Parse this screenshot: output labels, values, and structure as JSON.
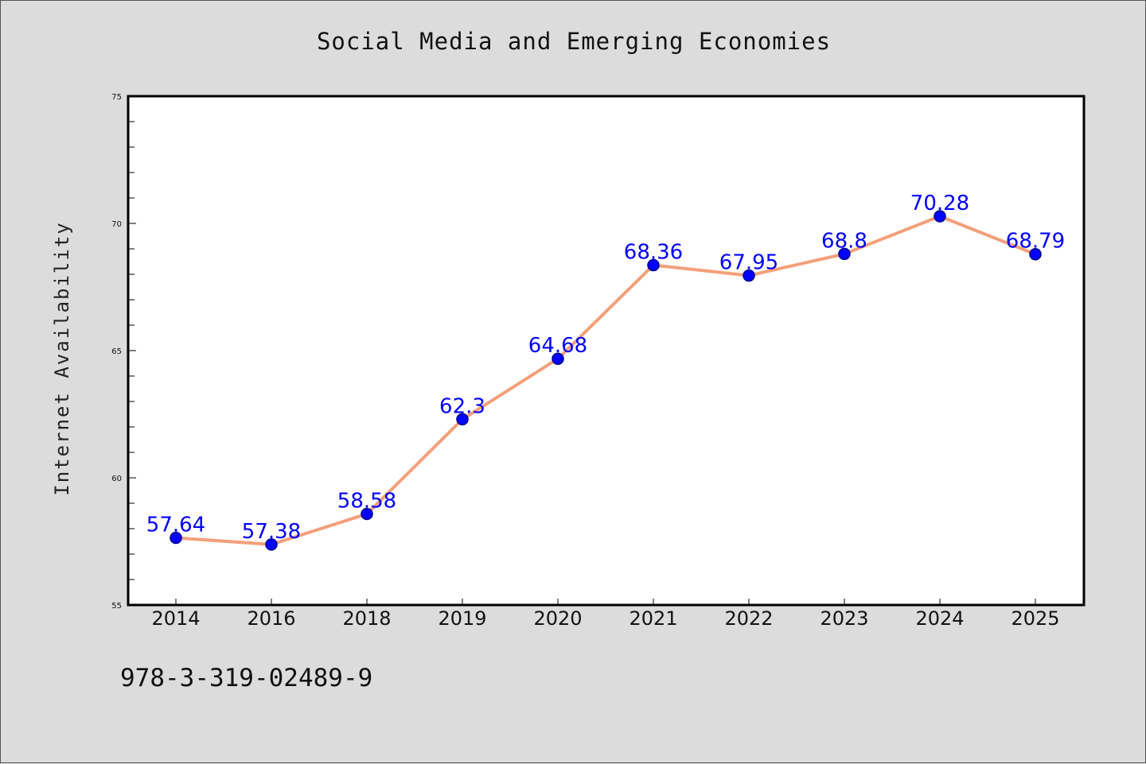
{
  "chart_data": {
    "type": "line",
    "title": "Social Media and Emerging Economies",
    "xlabel": "",
    "ylabel": "Internet Availability",
    "categories": [
      "2014",
      "2016",
      "2018",
      "2019",
      "2020",
      "2021",
      "2022",
      "2023",
      "2024",
      "2025"
    ],
    "series": [
      {
        "values": [
          57.64,
          57.38,
          58.58,
          62.3,
          64.68,
          68.36,
          67.95,
          68.8,
          70.28,
          68.79
        ],
        "labels": [
          "57.64",
          "57.38",
          "58.58",
          "62.3",
          "64.68",
          "68.36",
          "67.95",
          "68.8",
          "70.28",
          "68.79"
        ]
      }
    ],
    "ylim": [
      55,
      75
    ],
    "yticks": [
      "55",
      "60",
      "65",
      "70",
      "75"
    ],
    "grid": false,
    "colors": {
      "line": "#f4a07a",
      "marker": "#0000ff",
      "marker_edge": "#00008b",
      "data_label": "#0000ff",
      "plot_bg": "#ffffff",
      "figure_bg": "#dcdcdc"
    }
  },
  "footer": {
    "id_text": "978-3-319-02489-9"
  }
}
